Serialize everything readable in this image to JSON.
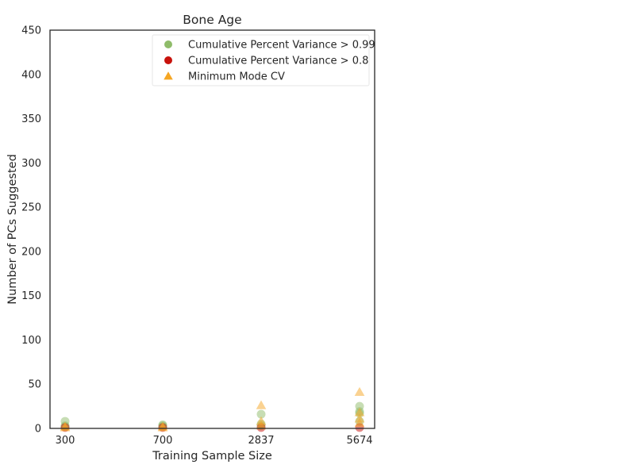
{
  "chart_data": {
    "type": "scatter",
    "title": "Bone Age",
    "xlabel": "Training Sample Size",
    "ylabel": "Number of PCs Suggested",
    "x_categories": [
      "300",
      "700",
      "2837",
      "5674"
    ],
    "ylim": [
      0,
      450
    ],
    "yticks": [
      0,
      50,
      100,
      150,
      200,
      250,
      300,
      350,
      400,
      450
    ],
    "grid": false,
    "legend_position": "top-right",
    "series": [
      {
        "name": "Cumulative Percent Variance > 0.99",
        "marker": "circle",
        "color": "#8fbc6a",
        "points": [
          {
            "x": "300",
            "y": 8
          },
          {
            "x": "300",
            "y": 3
          },
          {
            "x": "300",
            "y": 2
          },
          {
            "x": "700",
            "y": 4
          },
          {
            "x": "700",
            "y": 3
          },
          {
            "x": "700",
            "y": 2
          },
          {
            "x": "2837",
            "y": 16
          },
          {
            "x": "2837",
            "y": 5
          },
          {
            "x": "2837",
            "y": 3
          },
          {
            "x": "5674",
            "y": 25
          },
          {
            "x": "5674",
            "y": 19
          },
          {
            "x": "5674",
            "y": 17
          },
          {
            "x": "5674",
            "y": 8
          }
        ]
      },
      {
        "name": "Cumulative Percent Variance > 0.8",
        "marker": "circle",
        "color": "#c8120c",
        "points": [
          {
            "x": "300",
            "y": 1
          },
          {
            "x": "700",
            "y": 1
          },
          {
            "x": "2837",
            "y": 1
          },
          {
            "x": "5674",
            "y": 1
          }
        ]
      },
      {
        "name": "Minimum Mode CV",
        "marker": "triangle",
        "color": "#f5a623",
        "points": [
          {
            "x": "300",
            "y": 2
          },
          {
            "x": "300",
            "y": 1
          },
          {
            "x": "700",
            "y": 2
          },
          {
            "x": "700",
            "y": 1
          },
          {
            "x": "2837",
            "y": 26
          },
          {
            "x": "2837",
            "y": 8
          },
          {
            "x": "2837",
            "y": 3
          },
          {
            "x": "5674",
            "y": 41
          },
          {
            "x": "5674",
            "y": 18
          },
          {
            "x": "5674",
            "y": 11
          },
          {
            "x": "5674",
            "y": 6
          }
        ]
      }
    ]
  }
}
